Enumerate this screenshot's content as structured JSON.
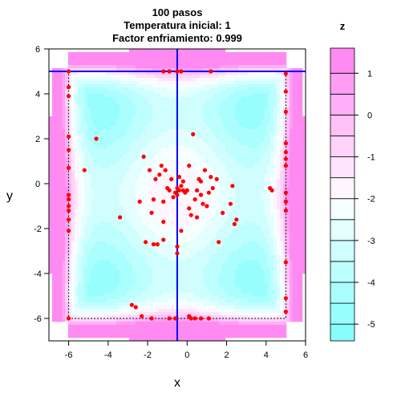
{
  "chart_data": {
    "type": "contour-scatter",
    "title_lines": [
      "100 pasos",
      "Temperatura inicial: 1",
      "Factor enfriamiento: 0.999"
    ],
    "xlabel": "x",
    "ylabel": "y",
    "xlim": [
      -7,
      6
    ],
    "ylim": [
      -7,
      6
    ],
    "x_ticks": [
      -6,
      -4,
      -2,
      0,
      2,
      4,
      6
    ],
    "y_ticks": [
      -6,
      -4,
      -2,
      0,
      2,
      4,
      6
    ],
    "legend": {
      "title": "z",
      "range": [
        -5.4,
        1.6
      ],
      "ticks": [
        -5,
        -4,
        -3,
        -2,
        -1,
        0,
        1
      ],
      "levels": [
        -5.4,
        -5,
        -4.5,
        -4,
        -3.5,
        -3,
        -2.5,
        -2,
        -1.5,
        -1,
        -0.5,
        0,
        0.5,
        1,
        1.6
      ],
      "low_color": "#7ffdfd",
      "mid_color": "#ffffff",
      "high_color": "#ff7ff0"
    },
    "box": {
      "xmin": -6,
      "xmax": 5,
      "ymin": -6,
      "ymax": 5
    },
    "crosshair": {
      "x": -0.5,
      "y": 5,
      "color": "#0000ff"
    },
    "point_color": "#ff0000",
    "points": [
      [
        -6,
        5
      ],
      [
        -6,
        4.3
      ],
      [
        -6,
        3.9
      ],
      [
        -6,
        2.1
      ],
      [
        -6,
        1.5
      ],
      [
        -6,
        0.7
      ],
      [
        -6,
        -0.5
      ],
      [
        -6,
        -0.7
      ],
      [
        -6,
        -1
      ],
      [
        -6,
        -1.2
      ],
      [
        -6,
        -1.6
      ],
      [
        -6,
        -2.1
      ],
      [
        -6,
        -6
      ],
      [
        5,
        4.9
      ],
      [
        5,
        4.1
      ],
      [
        5,
        3.2
      ],
      [
        5,
        1.8
      ],
      [
        5,
        1.4
      ],
      [
        5,
        1.1
      ],
      [
        5,
        0.8
      ],
      [
        5,
        -0.4
      ],
      [
        5,
        -0.8
      ],
      [
        5,
        -1.2
      ],
      [
        5,
        -3.5
      ],
      [
        5,
        -5.1
      ],
      [
        5,
        -5.7
      ],
      [
        -4.6,
        2
      ],
      [
        -5.2,
        0.6
      ],
      [
        -1.2,
        5
      ],
      [
        -0.9,
        5
      ],
      [
        -0.5,
        5
      ],
      [
        -0.3,
        5
      ],
      [
        1.2,
        5
      ],
      [
        -3.4,
        -1.5
      ],
      [
        -2.8,
        -5.4
      ],
      [
        -2.6,
        -5.5
      ],
      [
        -2.3,
        -5.9
      ],
      [
        -2.1,
        -2.6
      ],
      [
        -1.8,
        -6
      ],
      [
        -1.7,
        -2.7
      ],
      [
        -1.5,
        -2.7
      ],
      [
        -1.2,
        -2.5
      ],
      [
        -0.9,
        -6
      ],
      [
        -0.6,
        -6
      ],
      [
        -0.5,
        -2.8
      ],
      [
        -0.5,
        -3.1
      ],
      [
        0.1,
        -5.9
      ],
      [
        0.2,
        -6
      ],
      [
        0.4,
        -6
      ],
      [
        0.7,
        -6
      ],
      [
        1.1,
        -6
      ],
      [
        1.6,
        -2.6
      ],
      [
        2.4,
        -1.8
      ],
      [
        -2.4,
        -0.8
      ],
      [
        -2.2,
        1.2
      ],
      [
        -1.9,
        0.6
      ],
      [
        -1.7,
        -0.7
      ],
      [
        -1.6,
        0.2
      ],
      [
        -1.4,
        0.4
      ],
      [
        -1.3,
        0.8
      ],
      [
        -1.2,
        -0.8
      ],
      [
        -1.1,
        0.6
      ],
      [
        -1,
        -0.2
      ],
      [
        -0.9,
        -0.3
      ],
      [
        -0.8,
        0.2
      ],
      [
        -0.7,
        -0.6
      ],
      [
        -0.6,
        -0.4
      ],
      [
        -0.5,
        -0.5
      ],
      [
        -0.5,
        -0.2
      ],
      [
        -0.4,
        -0.3
      ],
      [
        -0.3,
        -0.1
      ],
      [
        -0.2,
        -0.3
      ],
      [
        -0.1,
        -0.4
      ],
      [
        0,
        -0.3
      ],
      [
        -0.4,
        0.3
      ],
      [
        0.1,
        0.8
      ],
      [
        0.3,
        2.2
      ],
      [
        0.1,
        -1.1
      ],
      [
        0.2,
        -1.4
      ],
      [
        0.4,
        -0.7
      ],
      [
        0.5,
        -0.3
      ],
      [
        0.6,
        0.2
      ],
      [
        0.7,
        -0.5
      ],
      [
        0.8,
        -0.9
      ],
      [
        0.9,
        0.6
      ],
      [
        1,
        -1
      ],
      [
        1.1,
        -0.4
      ],
      [
        1.2,
        0.3
      ],
      [
        1.3,
        -0.2
      ],
      [
        0.7,
        0.1
      ],
      [
        -0.2,
        0.1
      ],
      [
        1.5,
        0.2
      ],
      [
        1.8,
        -1.3
      ],
      [
        2.2,
        -0.9
      ],
      [
        2.3,
        -0.1
      ],
      [
        -1.8,
        -1.3
      ],
      [
        -1.2,
        -1.7
      ],
      [
        0.5,
        -1.5
      ],
      [
        -0.3,
        -2.1
      ],
      [
        2.5,
        -1.6
      ],
      [
        4.2,
        -0.2
      ],
      [
        4.3,
        -0.3
      ]
    ]
  }
}
